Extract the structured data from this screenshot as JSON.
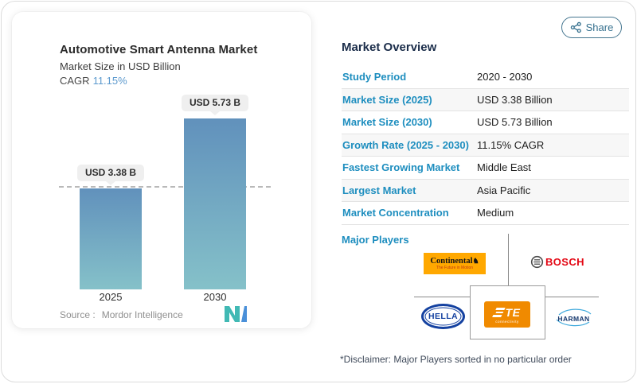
{
  "chart_card": {
    "title": "Automotive Smart Antenna Market",
    "subtitle": "Market Size in USD Billion",
    "cagr_label": "CAGR",
    "cagr_value": "11.15%",
    "source_label": "Source :",
    "source_name": "Mordor Intelligence"
  },
  "chart_data": {
    "type": "bar",
    "title": "Automotive Smart Antenna Market",
    "subtitle": "Market Size in USD Billion",
    "categories": [
      "2025",
      "2030"
    ],
    "values": [
      3.38,
      5.73
    ],
    "unit": "USD Billion",
    "bar_labels": [
      "USD 3.38 B",
      "USD 5.73 B"
    ],
    "reference_line": 3.38,
    "cagr": "11.15%",
    "ylim": [
      0,
      6.5
    ],
    "grid": false,
    "bar_color_top": "#6191bc",
    "bar_color_bottom": "#85c1c9"
  },
  "overview": {
    "share_label": "Share",
    "heading": "Market Overview",
    "rows": [
      {
        "label": "Study Period",
        "value": "2020 - 2030"
      },
      {
        "label": "Market Size (2025)",
        "value": "USD 3.38 Billion"
      },
      {
        "label": "Market Size (2030)",
        "value": "USD 5.73 Billion"
      },
      {
        "label": "Growth Rate (2025 - 2030)",
        "value": "11.15% CAGR"
      },
      {
        "label": "Fastest Growing Market",
        "value": "Middle East"
      },
      {
        "label": "Largest Market",
        "value": "Asia Pacific"
      },
      {
        "label": "Market Concentration",
        "value": "Medium"
      }
    ],
    "major_players_label": "Major Players",
    "players": [
      {
        "name": "Continental",
        "tagline": "The Future in Motion"
      },
      {
        "name": "BOSCH"
      },
      {
        "name": "HELLA"
      },
      {
        "name": "TE",
        "sub": "connectivity"
      },
      {
        "name": "HARMAN"
      }
    ],
    "disclaimer": "*Disclaimer: Major Players sorted in no particular order"
  },
  "colors": {
    "accent_teal": "#1e8ebf",
    "heading_navy": "#1b2d4a",
    "cagr_blue": "#5d9ace",
    "continental_orange": "#ffa800",
    "bosch_red": "#e30613",
    "hella_blue": "#1441a0",
    "te_orange": "#f08a00",
    "harman_blue": "#16386e"
  }
}
